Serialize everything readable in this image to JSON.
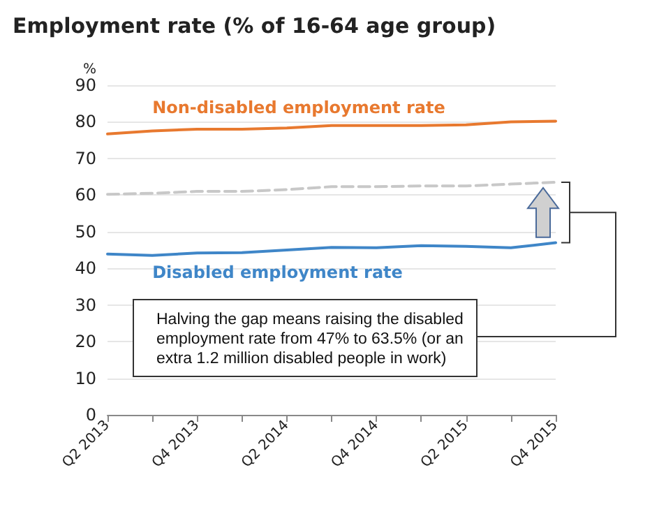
{
  "chart_data": {
    "type": "line",
    "title": "Employment rate (% of 16-64 age group)",
    "ylabel": "%",
    "categories": [
      "Q2 2013",
      null,
      "Q4 2013",
      null,
      "Q2 2014",
      null,
      "Q4 2014",
      null,
      "Q2 2015",
      null,
      "Q4 2015"
    ],
    "series": [
      {
        "name": "Non-disabled employment rate",
        "color": "#e8792f",
        "values": [
          76.7,
          77.5,
          78,
          78,
          78.3,
          79,
          79,
          79,
          79.2,
          80,
          80.2
        ]
      },
      {
        "color": "#c8c8c8",
        "line_style": "dashed",
        "values": [
          60.2,
          60.5,
          61,
          61,
          61.5,
          62.3,
          62.3,
          62.5,
          62.5,
          63,
          63.5
        ]
      },
      {
        "name": "Disabled employment rate",
        "color": "#3f86c8",
        "values": [
          43.9,
          43.5,
          44.2,
          44.3,
          45,
          45.7,
          45.6,
          46.2,
          46,
          45.6,
          47
        ]
      }
    ],
    "ylim": [
      0,
      90
    ],
    "yticks": [
      0,
      10,
      20,
      30,
      40,
      50,
      60,
      70,
      80,
      90
    ],
    "grid": "y",
    "legend": false,
    "marker": "none",
    "line_style": "solid",
    "annotations": [
      "Halving the gap means raising the disabled employment rate from 47% to 63.5% (or an extra 1.2 million disabled people in work)"
    ]
  }
}
